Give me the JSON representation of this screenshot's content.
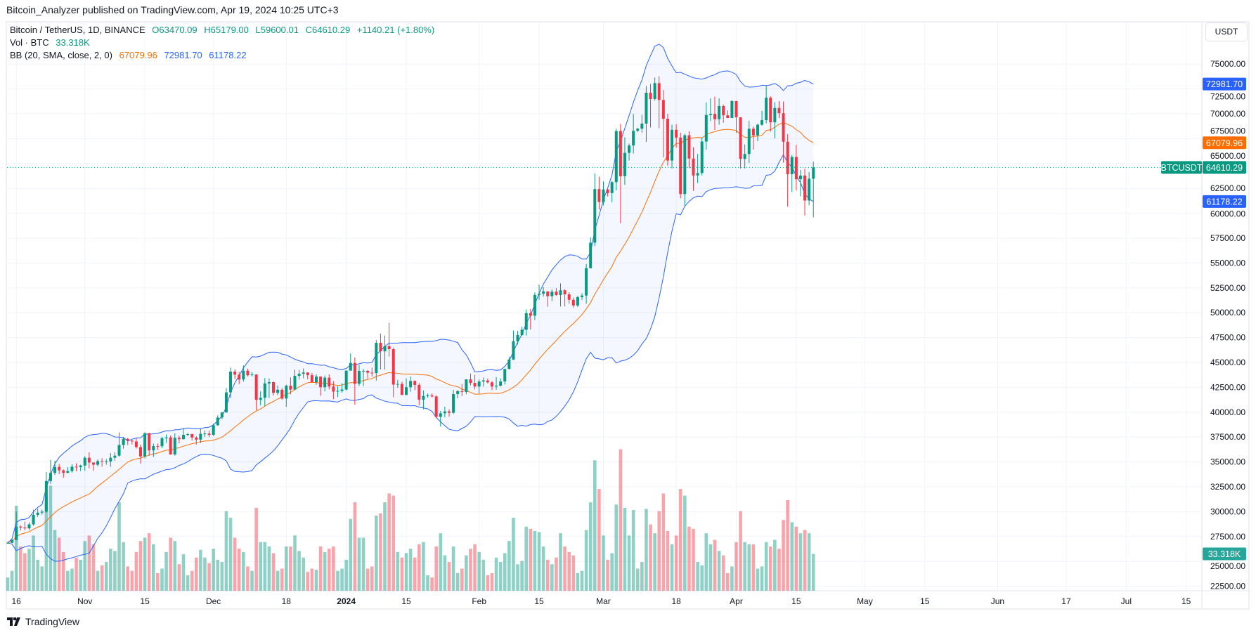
{
  "publisher_line": "Bitcoin_Analyzer published on TradingView.com, Apr 19, 2024 10:25 UTC+3",
  "legend": {
    "symbol": "Bitcoin / TetherUS, 1D, BINANCE",
    "open": "O63470.09",
    "high": "H65179.00",
    "low": "L59600.01",
    "close": "C64610.29",
    "change": "+1140.21 (+1.80%)",
    "vol_label": "Vol · BTC",
    "vol_value": "33.318K",
    "bb_label": "BB (20, SMA, close, 2, 0)",
    "bb_basis": "67079.96",
    "bb_upper": "72981.70",
    "bb_lower": "61178.22"
  },
  "currency_button": "USDT",
  "price_labels": {
    "symbol_tag": "BTCUSDT",
    "last": "64610.29",
    "upper": "72981.70",
    "basis": "67079.96",
    "lower": "61178.22",
    "volume": "33.318K"
  },
  "footer": {
    "brand": "TradingView"
  },
  "colors": {
    "up": "#089981",
    "down": "#f23645",
    "bb_band": "#2962ff",
    "bb_basis": "#ff6d00"
  },
  "chart_data": {
    "type": "candlestick",
    "interval": "1D",
    "start_date": "2023-10-14",
    "fields": [
      "open",
      "high",
      "low",
      "close",
      "volume_k"
    ],
    "ylim": [
      21500,
      77500
    ],
    "y_ticks": [
      "22500.00",
      "25000.00",
      "27500.00",
      "30000.00",
      "32500.00",
      "35000.00",
      "37500.00",
      "40000.00",
      "42500.00",
      "45000.00",
      "47500.00",
      "50000.00",
      "52500.00",
      "55000.00",
      "57500.00",
      "60000.00",
      "62500.00",
      "65000.00",
      "67500.00",
      "70000.00",
      "72500.00",
      "75000.00"
    ],
    "x_ticks": [
      [
        "16",
        2
      ],
      [
        "Nov",
        18
      ],
      [
        "15",
        32
      ],
      [
        "Dec",
        48
      ],
      [
        "18",
        65
      ],
      [
        "2024",
        79
      ],
      [
        "15",
        93
      ],
      [
        "Feb",
        110
      ],
      [
        "15",
        124
      ],
      [
        "Mar",
        139
      ],
      [
        "18",
        156
      ],
      [
        "Apr",
        170
      ],
      [
        "15",
        184
      ],
      [
        "May",
        200
      ],
      [
        "15",
        214
      ],
      [
        "Jun",
        231
      ],
      [
        "17",
        247
      ],
      [
        "Jul",
        261
      ],
      [
        "15",
        275
      ]
    ],
    "grid": true,
    "indicators": [
      "Volume",
      "Bollinger Bands (20, SMA, close, 2, 0)"
    ],
    "candles": [
      [
        26850,
        26990,
        26800,
        26870,
        12
      ],
      [
        26870,
        27300,
        26820,
        27150,
        18
      ],
      [
        27150,
        30000,
        27110,
        28500,
        77
      ],
      [
        28500,
        28620,
        28100,
        28400,
        40
      ],
      [
        28400,
        28990,
        28120,
        28320,
        34
      ],
      [
        28320,
        28930,
        28180,
        28720,
        38
      ],
      [
        28720,
        30200,
        28600,
        29680,
        50
      ],
      [
        29680,
        30290,
        29470,
        29900,
        28
      ],
      [
        29900,
        30200,
        29690,
        30000,
        22
      ],
      [
        30000,
        34000,
        29900,
        33080,
        85
      ],
      [
        33080,
        35200,
        32800,
        33900,
        95
      ],
      [
        33900,
        35130,
        33690,
        34500,
        55
      ],
      [
        34500,
        34800,
        33780,
        34150,
        48
      ],
      [
        34150,
        34250,
        33400,
        33900,
        35
      ],
      [
        33900,
        34480,
        33870,
        34080,
        18
      ],
      [
        34080,
        34770,
        33930,
        34520,
        20
      ],
      [
        34520,
        34860,
        34070,
        34480,
        30
      ],
      [
        34480,
        34720,
        34080,
        34640,
        28
      ],
      [
        34640,
        35580,
        34100,
        35420,
        45
      ],
      [
        35420,
        35980,
        34350,
        34940,
        50
      ],
      [
        34940,
        34950,
        34100,
        34720,
        42
      ],
      [
        34720,
        35250,
        34550,
        35080,
        18
      ],
      [
        35080,
        35380,
        34520,
        35040,
        23
      ],
      [
        35040,
        35280,
        34720,
        35040,
        26
      ],
      [
        35040,
        35890,
        34520,
        35420,
        38
      ],
      [
        35420,
        35980,
        35120,
        35630,
        36
      ],
      [
        35630,
        37970,
        35530,
        36700,
        80
      ],
      [
        36700,
        37520,
        36330,
        37320,
        44
      ],
      [
        37320,
        37410,
        36700,
        37140,
        22
      ],
      [
        37140,
        37220,
        36750,
        37060,
        18
      ],
      [
        37060,
        37420,
        36340,
        36490,
        35
      ],
      [
        36490,
        36750,
        34800,
        35550,
        45
      ],
      [
        35550,
        37980,
        35360,
        37880,
        48
      ],
      [
        37880,
        37930,
        35670,
        36160,
        52
      ],
      [
        36160,
        36850,
        35500,
        36590,
        42
      ],
      [
        36590,
        36850,
        36200,
        36580,
        16
      ],
      [
        36580,
        37530,
        36380,
        37380,
        20
      ],
      [
        37380,
        37760,
        36900,
        37460,
        35
      ],
      [
        37460,
        37650,
        35720,
        35750,
        48
      ],
      [
        35750,
        37890,
        35630,
        37420,
        45
      ],
      [
        37420,
        37650,
        36870,
        37290,
        24
      ],
      [
        37290,
        38420,
        37250,
        37720,
        33
      ],
      [
        37720,
        37900,
        37600,
        37800,
        14
      ],
      [
        37800,
        37820,
        37150,
        37450,
        18
      ],
      [
        37450,
        37590,
        36720,
        37240,
        30
      ],
      [
        37240,
        38400,
        36890,
        37830,
        37
      ],
      [
        37830,
        38150,
        37500,
        37850,
        30
      ],
      [
        37850,
        38150,
        37500,
        37720,
        25
      ],
      [
        37720,
        38840,
        37620,
        38690,
        38
      ],
      [
        38690,
        39680,
        38640,
        39460,
        28
      ],
      [
        39460,
        40000,
        39290,
        39970,
        26
      ],
      [
        39970,
        42420,
        39970,
        41990,
        72
      ],
      [
        41990,
        44490,
        41420,
        44080,
        66
      ],
      [
        44080,
        44300,
        43330,
        43770,
        48
      ],
      [
        43770,
        44050,
        42820,
        43290,
        38
      ],
      [
        43290,
        44700,
        43080,
        44170,
        35
      ],
      [
        44170,
        44370,
        43580,
        43720,
        22
      ],
      [
        43720,
        44040,
        43590,
        43790,
        18
      ],
      [
        43790,
        43800,
        40220,
        41240,
        75
      ],
      [
        41240,
        42100,
        40680,
        41450,
        44
      ],
      [
        41450,
        43430,
        40590,
        42890,
        44
      ],
      [
        42890,
        43400,
        41420,
        43020,
        40
      ],
      [
        43020,
        43090,
        41670,
        41940,
        34
      ],
      [
        41940,
        42700,
        41720,
        42260,
        18
      ],
      [
        42260,
        42430,
        41250,
        41370,
        20
      ],
      [
        41370,
        42760,
        40530,
        42660,
        40
      ],
      [
        42660,
        43500,
        41800,
        42270,
        40
      ],
      [
        42270,
        44280,
        42210,
        43650,
        50
      ],
      [
        43650,
        44240,
        43280,
        43860,
        36
      ],
      [
        43860,
        44400,
        43400,
        43990,
        30
      ],
      [
        43990,
        44020,
        43300,
        43720,
        17
      ],
      [
        43720,
        43950,
        43000,
        43010,
        20
      ],
      [
        43010,
        43800,
        42750,
        43580,
        19
      ],
      [
        43580,
        43600,
        41650,
        42510,
        40
      ],
      [
        42510,
        43680,
        42100,
        43470,
        35
      ],
      [
        43470,
        43800,
        42300,
        42580,
        38
      ],
      [
        42580,
        43120,
        41300,
        42070,
        40
      ],
      [
        42070,
        42600,
        41520,
        42140,
        18
      ],
      [
        42140,
        42900,
        41970,
        42280,
        20
      ],
      [
        42280,
        44190,
        42180,
        44180,
        28
      ],
      [
        44180,
        45900,
        44170,
        44950,
        65
      ],
      [
        44950,
        45500,
        40750,
        42850,
        80
      ],
      [
        42850,
        44730,
        42630,
        44150,
        48
      ],
      [
        44150,
        44340,
        42630,
        44160,
        48
      ],
      [
        44160,
        44220,
        43400,
        43970,
        20
      ],
      [
        43970,
        44490,
        43560,
        43930,
        22
      ],
      [
        43930,
        47250,
        43180,
        46970,
        68
      ],
      [
        46970,
        47900,
        44300,
        46120,
        70
      ],
      [
        46120,
        47700,
        44300,
        46630,
        80
      ],
      [
        46630,
        49000,
        45600,
        46340,
        88
      ],
      [
        46340,
        46500,
        41500,
        42780,
        86
      ],
      [
        42780,
        43250,
        42440,
        42840,
        35
      ],
      [
        42840,
        43070,
        41720,
        41730,
        30
      ],
      [
        41730,
        43400,
        41720,
        42510,
        34
      ],
      [
        42510,
        43580,
        42050,
        43140,
        38
      ],
      [
        43140,
        43200,
        42200,
        42740,
        30
      ],
      [
        42740,
        42930,
        40680,
        41260,
        42
      ],
      [
        41260,
        42200,
        40280,
        41620,
        44
      ],
      [
        41620,
        41870,
        41450,
        41680,
        14
      ],
      [
        41680,
        41880,
        41500,
        41580,
        12
      ],
      [
        41580,
        41690,
        39430,
        39530,
        40
      ],
      [
        39530,
        40130,
        38550,
        39890,
        52
      ],
      [
        39890,
        40550,
        39480,
        40080,
        32
      ],
      [
        40080,
        40290,
        39540,
        39940,
        26
      ],
      [
        39940,
        42250,
        39820,
        41820,
        40
      ],
      [
        41820,
        42200,
        41400,
        42120,
        16
      ],
      [
        42120,
        42840,
        41620,
        42030,
        20
      ],
      [
        42030,
        43310,
        41800,
        43300,
        32
      ],
      [
        43300,
        43880,
        42690,
        42940,
        38
      ],
      [
        42940,
        43740,
        42280,
        42580,
        42
      ],
      [
        42580,
        43290,
        41880,
        43080,
        35
      ],
      [
        43080,
        43490,
        42580,
        43190,
        28
      ],
      [
        43190,
        43380,
        42880,
        43000,
        14
      ],
      [
        43000,
        43120,
        42220,
        42580,
        16
      ],
      [
        42580,
        43530,
        42260,
        42660,
        30
      ],
      [
        42660,
        43400,
        42580,
        43090,
        26
      ],
      [
        43090,
        44380,
        42780,
        44340,
        34
      ],
      [
        44340,
        45580,
        44330,
        45290,
        45
      ],
      [
        45290,
        48200,
        45250,
        47130,
        66
      ],
      [
        47130,
        48170,
        46800,
        47750,
        24
      ],
      [
        47750,
        48590,
        47700,
        48290,
        27
      ],
      [
        48290,
        50330,
        47700,
        49960,
        58
      ],
      [
        49960,
        50370,
        48300,
        49700,
        56
      ],
      [
        49700,
        52040,
        49260,
        51790,
        54
      ],
      [
        51790,
        52820,
        51300,
        51910,
        53
      ],
      [
        51910,
        52570,
        51620,
        52140,
        40
      ],
      [
        52140,
        52170,
        50600,
        51660,
        28
      ],
      [
        51660,
        52350,
        51170,
        52120,
        24
      ],
      [
        52120,
        52480,
        51690,
        51780,
        30
      ],
      [
        51780,
        52950,
        50620,
        52260,
        52
      ],
      [
        52260,
        52370,
        50630,
        51850,
        40
      ],
      [
        51850,
        52060,
        50900,
        51300,
        35
      ],
      [
        51300,
        51530,
        50520,
        50730,
        32
      ],
      [
        50730,
        51680,
        50580,
        51570,
        16
      ],
      [
        51570,
        51960,
        51280,
        51730,
        18
      ],
      [
        51730,
        54900,
        50900,
        54480,
        55
      ],
      [
        54480,
        57580,
        54450,
        57040,
        80
      ],
      [
        57040,
        64000,
        56700,
        62430,
        118
      ],
      [
        62430,
        63680,
        60360,
        61130,
        92
      ],
      [
        61130,
        63200,
        60800,
        62390,
        50
      ],
      [
        62390,
        62430,
        61700,
        62030,
        28
      ],
      [
        62030,
        63230,
        61100,
        63130,
        34
      ],
      [
        63130,
        68500,
        62300,
        68270,
        78
      ],
      [
        68270,
        69000,
        59000,
        63720,
        128
      ],
      [
        63720,
        67640,
        62850,
        66070,
        75
      ],
      [
        66070,
        67000,
        65300,
        66810,
        50
      ],
      [
        66810,
        69990,
        66000,
        68290,
        73
      ],
      [
        68290,
        68600,
        68150,
        68500,
        20
      ],
      [
        68500,
        69900,
        68100,
        69020,
        26
      ],
      [
        69020,
        72800,
        67180,
        72120,
        74
      ],
      [
        72120,
        73000,
        68620,
        71480,
        60
      ],
      [
        71480,
        73650,
        71330,
        73080,
        52
      ],
      [
        73080,
        73780,
        68550,
        71390,
        72
      ],
      [
        71390,
        72400,
        65600,
        69500,
        88
      ],
      [
        69500,
        70000,
        64780,
        65300,
        54
      ],
      [
        65300,
        68900,
        64500,
        68390,
        42
      ],
      [
        68390,
        68950,
        66600,
        67610,
        50
      ],
      [
        67610,
        68100,
        61500,
        61930,
        92
      ],
      [
        61930,
        68000,
        60770,
        67840,
        86
      ],
      [
        67840,
        68240,
        64530,
        65500,
        58
      ],
      [
        65500,
        66650,
        62260,
        63800,
        56
      ],
      [
        63800,
        65970,
        63040,
        64040,
        26
      ],
      [
        64040,
        67620,
        63800,
        67210,
        23
      ],
      [
        67210,
        71150,
        66390,
        69880,
        52
      ],
      [
        69880,
        71560,
        69280,
        69990,
        42
      ],
      [
        69990,
        71720,
        68380,
        69460,
        46
      ],
      [
        69460,
        71550,
        68900,
        70780,
        36
      ],
      [
        70780,
        70920,
        69100,
        69850,
        32
      ],
      [
        69850,
        70350,
        69560,
        69580,
        16
      ],
      [
        69580,
        71370,
        69560,
        71280,
        22
      ],
      [
        71280,
        71290,
        68060,
        69650,
        44
      ],
      [
        69650,
        69650,
        64500,
        65460,
        72
      ],
      [
        65460,
        66920,
        64500,
        65960,
        44
      ],
      [
        65960,
        69290,
        65060,
        68500,
        42
      ],
      [
        68500,
        68720,
        66400,
        67830,
        42
      ],
      [
        67830,
        69010,
        67240,
        68900,
        20
      ],
      [
        68900,
        70300,
        68800,
        69360,
        22
      ],
      [
        69360,
        72800,
        69040,
        71620,
        44
      ],
      [
        71620,
        71760,
        68210,
        69140,
        40
      ],
      [
        69140,
        71170,
        67520,
        70590,
        46
      ],
      [
        70590,
        71260,
        69560,
        70060,
        38
      ],
      [
        70060,
        71230,
        65090,
        67190,
        64
      ],
      [
        67190,
        67950,
        60660,
        63920,
        82
      ],
      [
        63920,
        65840,
        62130,
        65660,
        62
      ],
      [
        65660,
        66880,
        62300,
        63420,
        58
      ],
      [
        63420,
        64360,
        61710,
        63790,
        52
      ],
      [
        63790,
        64470,
        59770,
        61280,
        55
      ],
      [
        61280,
        64130,
        60800,
        63470,
        52
      ],
      [
        63470.09,
        65179,
        59600.01,
        64610.29,
        33.318
      ]
    ]
  }
}
